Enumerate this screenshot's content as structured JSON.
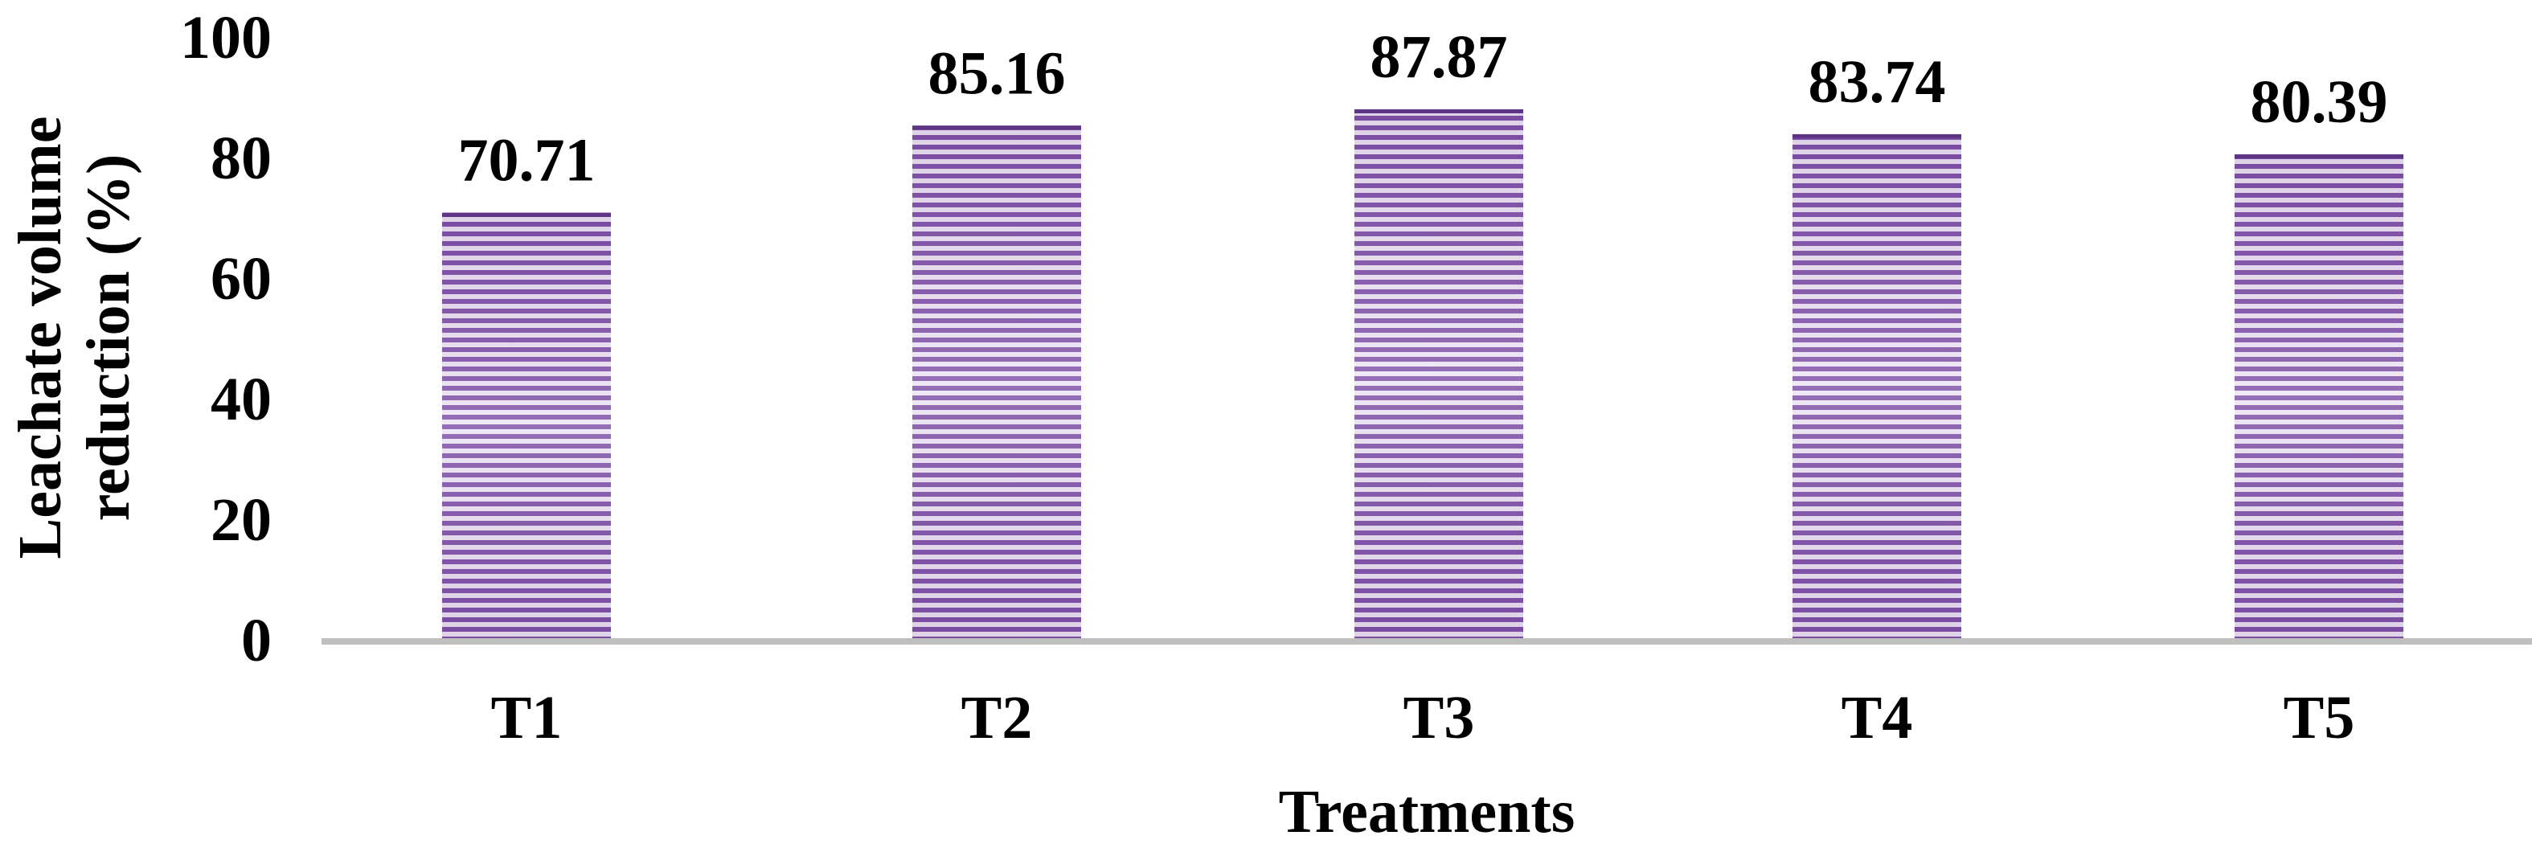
{
  "chart_data": {
    "type": "bar",
    "categories": [
      "T1",
      "T2",
      "T3",
      "T4",
      "T5"
    ],
    "values": [
      70.71,
      85.16,
      87.87,
      83.74,
      80.39
    ],
    "data_labels": [
      "70.71",
      "85.16",
      "87.87",
      "83.74",
      "80.39"
    ],
    "title": "",
    "xlabel": "Treatments",
    "ylabel_lines": [
      "Leachate volume",
      "reduction  (%)"
    ],
    "ylim": [
      0,
      100
    ],
    "yticks": [
      0,
      20,
      40,
      60,
      80,
      100
    ],
    "grid": false,
    "legend": "none",
    "colors": {
      "bar_fill_light": "#ede4f3",
      "bar_stripe": "#7d4fa6",
      "bar_stripe_dark": "#5e3584",
      "axis_line": "#bfbfbf",
      "text": "#000000"
    }
  }
}
